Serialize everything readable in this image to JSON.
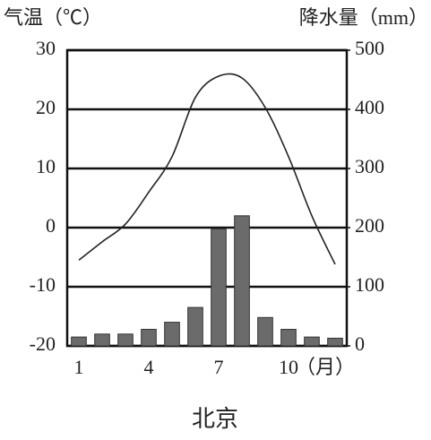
{
  "chart_data": {
    "type": "bar-line",
    "title": "北京",
    "y_label": "气温（℃）",
    "y2_label": "降水量（mm）",
    "x_label": "（月）",
    "categories": [
      "1",
      null,
      null,
      "4",
      null,
      null,
      "7",
      null,
      null,
      "10",
      null,
      null
    ],
    "ylim": [
      -20,
      30
    ],
    "yticks": [
      -20,
      -10,
      0,
      10,
      20,
      30
    ],
    "y2lim": [
      0,
      500
    ],
    "y2ticks": [
      0,
      100,
      200,
      300,
      400,
      500
    ],
    "grid": true,
    "series": [
      {
        "name": "降水量",
        "type": "bar",
        "axis": "y2",
        "color": "#6b6b6b",
        "values": [
          15,
          20,
          20,
          28,
          40,
          65,
          198,
          220,
          48,
          28,
          15,
          13
        ]
      },
      {
        "name": "气温",
        "type": "line",
        "color": "#222222",
        "values": [
          -5.5,
          -2.4,
          0.6,
          6,
          12,
          22,
          25.6,
          25.3,
          20.3,
          12,
          2,
          -6.2
        ]
      }
    ]
  }
}
